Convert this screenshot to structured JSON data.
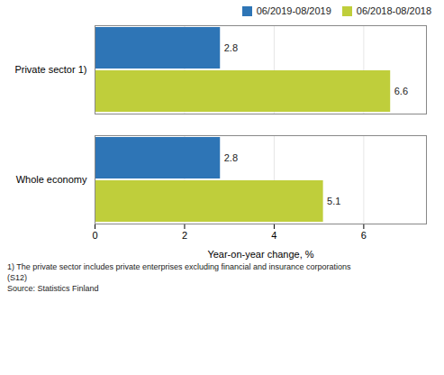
{
  "chart_data": {
    "type": "bar",
    "orientation": "horizontal",
    "categories": [
      "Whole economy",
      "Private sector 1)"
    ],
    "series": [
      {
        "name": "06/2019-08/2019",
        "color": "#2E75B6",
        "values": [
          2.8,
          2.8
        ]
      },
      {
        "name": "06/2018-08/2018",
        "color": "#BFCE3B",
        "values": [
          5.1,
          6.6
        ]
      }
    ],
    "xlabel": "Year-on-year change, %",
    "xlim": [
      0,
      7.4
    ],
    "xticks": [
      0,
      2,
      4,
      6
    ],
    "grid": true,
    "legend": "upper right",
    "data_labels": true,
    "annotations": [
      "1) The private sector includes private enterprises excluding financial and insurance corporations",
      "(S12)",
      "Source: Statistics Finland"
    ]
  }
}
